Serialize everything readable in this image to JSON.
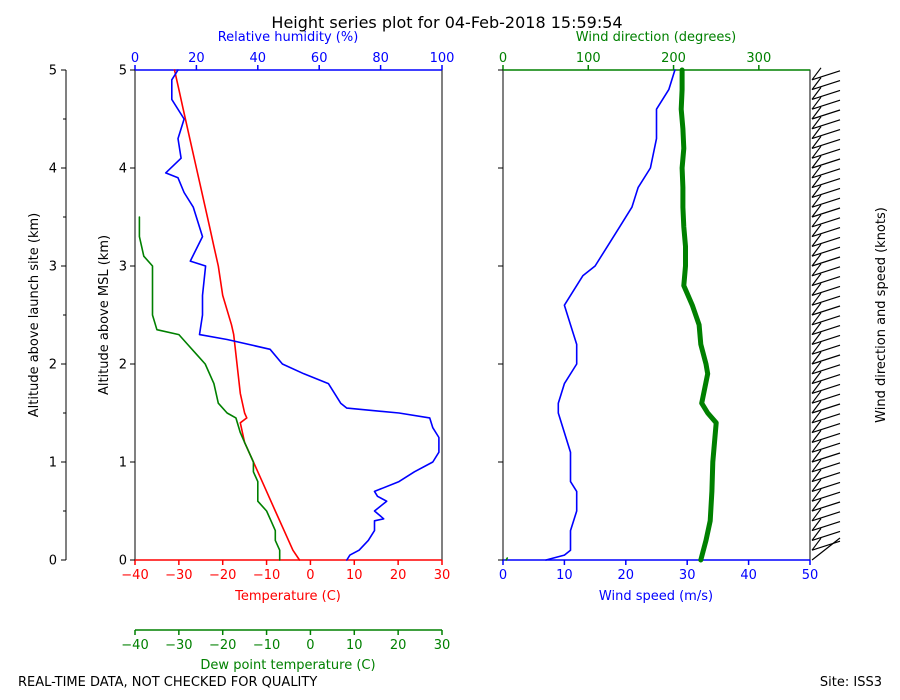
{
  "title": "Height series plot for 04-Feb-2018 15:59:54",
  "footer": {
    "left": "REAL-TIME DATA, NOT CHECKED FOR QUALITY",
    "right": "Site: ISS3"
  },
  "colors": {
    "temperature": "#ff0000",
    "dewpoint": "#008000",
    "humidity": "#0000ff",
    "wind_speed": "#0000ff",
    "wind_direction": "#008000",
    "barbs": "#000000"
  },
  "chart_data": [
    {
      "type": "line",
      "panel": "thermo",
      "axes": {
        "outer_left": {
          "label": "Altitude above launch site (km)",
          "range": [
            0,
            5
          ],
          "ticks": [
            0,
            1,
            2,
            3,
            4,
            5
          ]
        },
        "left": {
          "label": "Altitude above MSL (km)",
          "range": [
            0,
            5
          ],
          "ticks": [
            0,
            1,
            2,
            3,
            4,
            5
          ]
        },
        "bottom": {
          "label": "Temperature (C)",
          "range": [
            -40,
            30
          ],
          "ticks": [
            -40,
            -30,
            -20,
            -10,
            0,
            10,
            20,
            30
          ]
        },
        "bottom2": {
          "label": "Dew point temperature (C)",
          "range": [
            -40,
            30
          ],
          "ticks": [
            -40,
            -30,
            -20,
            -10,
            0,
            10,
            20,
            30
          ]
        },
        "top": {
          "label": "Relative humidity (%)",
          "range": [
            0,
            100
          ],
          "ticks": [
            0,
            20,
            40,
            60,
            80,
            100
          ]
        }
      },
      "series": [
        {
          "name": "Temperature",
          "axis": "temperature",
          "color": "#ff0000",
          "points": [
            [
              -2.5,
              0
            ],
            [
              -4,
              0.1
            ],
            [
              -6,
              0.3
            ],
            [
              -8,
              0.5
            ],
            [
              -11,
              0.8
            ],
            [
              -13,
              1.0
            ],
            [
              -15,
              1.2
            ],
            [
              -16,
              1.4
            ],
            [
              -14.5,
              1.45
            ],
            [
              -15,
              1.5
            ],
            [
              -16,
              1.7
            ],
            [
              -16.5,
              1.9
            ],
            [
              -17,
              2.1
            ],
            [
              -17.5,
              2.3
            ],
            [
              -18,
              2.4
            ],
            [
              -20,
              2.7
            ],
            [
              -21,
              3.0
            ],
            [
              -22,
              3.2
            ],
            [
              -23,
              3.4
            ],
            [
              -24,
              3.6
            ],
            [
              -25,
              3.8
            ],
            [
              -26,
              4.0
            ],
            [
              -27,
              4.2
            ],
            [
              -28,
              4.4
            ],
            [
              -29,
              4.6
            ],
            [
              -30,
              4.8
            ],
            [
              -31,
              5.0
            ]
          ]
        },
        {
          "name": "Dew point",
          "axis": "dewpoint",
          "color": "#008000",
          "points": [
            [
              -7,
              0
            ],
            [
              -7,
              0.1
            ],
            [
              -8,
              0.2
            ],
            [
              -8,
              0.3
            ],
            [
              -9,
              0.4
            ],
            [
              -10,
              0.5
            ],
            [
              -12,
              0.6
            ],
            [
              -12,
              0.8
            ],
            [
              -13,
              0.9
            ],
            [
              -13,
              1.0
            ],
            [
              -14,
              1.1
            ],
            [
              -15,
              1.2
            ],
            [
              -16,
              1.3
            ],
            [
              -17,
              1.45
            ],
            [
              -19,
              1.5
            ],
            [
              -21,
              1.6
            ],
            [
              -22,
              1.8
            ],
            [
              -24,
              2.0
            ],
            [
              -26,
              2.1
            ],
            [
              -28,
              2.2
            ],
            [
              -30,
              2.3
            ],
            [
              -35,
              2.35
            ],
            [
              -36,
              2.5
            ],
            [
              -36,
              2.8
            ],
            [
              -36,
              3.0
            ],
            [
              -38,
              3.1
            ],
            [
              -39,
              3.3
            ],
            [
              -39,
              3.5
            ]
          ]
        },
        {
          "name": "Relative humidity",
          "axis": "humidity",
          "color": "#0000ff",
          "points": [
            [
              69,
              0
            ],
            [
              70,
              0.05
            ],
            [
              73,
              0.1
            ],
            [
              76,
              0.2
            ],
            [
              78,
              0.3
            ],
            [
              78,
              0.4
            ],
            [
              81,
              0.42
            ],
            [
              78,
              0.5
            ],
            [
              82,
              0.6
            ],
            [
              79,
              0.65
            ],
            [
              78,
              0.7
            ],
            [
              86,
              0.8
            ],
            [
              91,
              0.9
            ],
            [
              97,
              1.0
            ],
            [
              99,
              1.1
            ],
            [
              99,
              1.25
            ],
            [
              97,
              1.35
            ],
            [
              96,
              1.45
            ],
            [
              86,
              1.5
            ],
            [
              69,
              1.55
            ],
            [
              67,
              1.6
            ],
            [
              63,
              1.8
            ],
            [
              55,
              1.9
            ],
            [
              48,
              2.0
            ],
            [
              44,
              2.15
            ],
            [
              30,
              2.25
            ],
            [
              21,
              2.3
            ],
            [
              22,
              2.5
            ],
            [
              22,
              2.7
            ],
            [
              23,
              3.0
            ],
            [
              18,
              3.05
            ],
            [
              22,
              3.3
            ],
            [
              19,
              3.6
            ],
            [
              16,
              3.75
            ],
            [
              14,
              3.9
            ],
            [
              10,
              3.95
            ],
            [
              15,
              4.1
            ],
            [
              14,
              4.3
            ],
            [
              16,
              4.5
            ],
            [
              12,
              4.7
            ],
            [
              12,
              4.9
            ],
            [
              14,
              5.0
            ]
          ]
        }
      ]
    },
    {
      "type": "line",
      "panel": "wind",
      "axes": {
        "bottom": {
          "label": "Wind speed (m/s)",
          "range": [
            0,
            50
          ],
          "ticks": [
            0,
            10,
            20,
            30,
            40,
            50
          ]
        },
        "top": {
          "label": "Wind direction (degrees)",
          "range": [
            0,
            360
          ],
          "ticks": [
            0,
            100,
            200,
            300
          ]
        },
        "right": {
          "label": "Wind direction and speed (knots)"
        }
      },
      "series": [
        {
          "name": "Wind speed",
          "axis": "speed",
          "color": "#0000ff",
          "points": [
            [
              7,
              0
            ],
            [
              10,
              0.05
            ],
            [
              11,
              0.1
            ],
            [
              11,
              0.3
            ],
            [
              12,
              0.5
            ],
            [
              12,
              0.7
            ],
            [
              11,
              0.8
            ],
            [
              11,
              1.0
            ],
            [
              11,
              1.1
            ],
            [
              10,
              1.3
            ],
            [
              9,
              1.5
            ],
            [
              9,
              1.6
            ],
            [
              10,
              1.8
            ],
            [
              12,
              2.0
            ],
            [
              12,
              2.2
            ],
            [
              11,
              2.4
            ],
            [
              10,
              2.6
            ],
            [
              11,
              2.7
            ],
            [
              13,
              2.9
            ],
            [
              15,
              3.0
            ],
            [
              17,
              3.2
            ],
            [
              19,
              3.4
            ],
            [
              21,
              3.6
            ],
            [
              22,
              3.8
            ],
            [
              24,
              4.0
            ],
            [
              25,
              4.3
            ],
            [
              25,
              4.6
            ],
            [
              27,
              4.8
            ],
            [
              28,
              5.0
            ]
          ]
        },
        {
          "name": "Wind direction",
          "axis": "direction",
          "color": "#008000",
          "width": 5,
          "points": [
            [
              232,
              0
            ],
            [
              238,
              0.2
            ],
            [
              243,
              0.4
            ],
            [
              245,
              0.7
            ],
            [
              246,
              1.0
            ],
            [
              248,
              1.2
            ],
            [
              250,
              1.4
            ],
            [
              240,
              1.5
            ],
            [
              233,
              1.6
            ],
            [
              240,
              1.9
            ],
            [
              238,
              2.0
            ],
            [
              232,
              2.2
            ],
            [
              230,
              2.4
            ],
            [
              222,
              2.6
            ],
            [
              212,
              2.8
            ],
            [
              214,
              3.0
            ],
            [
              214,
              3.2
            ],
            [
              212,
              3.4
            ],
            [
              211,
              3.6
            ],
            [
              211,
              3.8
            ],
            [
              210,
              4.0
            ],
            [
              212,
              4.2
            ],
            [
              211,
              4.4
            ],
            [
              209,
              4.6
            ],
            [
              210,
              4.8
            ],
            [
              210,
              5.0
            ]
          ]
        },
        {
          "name": "Near-surface point",
          "axis": "speed",
          "color": "#008000",
          "points": [
            [
              0.5,
              0
            ],
            [
              0.7,
              0.02
            ]
          ]
        }
      ],
      "barbs": {
        "altitudes_km": [
          0.1,
          0.2,
          0.3,
          0.4,
          0.5,
          0.6,
          0.7,
          0.8,
          0.9,
          1.0,
          1.1,
          1.2,
          1.3,
          1.4,
          1.5,
          1.6,
          1.7,
          1.8,
          1.9,
          2.0,
          2.1,
          2.2,
          2.3,
          2.4,
          2.5,
          2.6,
          2.7,
          2.8,
          2.9,
          3.0,
          3.1,
          3.2,
          3.3,
          3.4,
          3.5,
          3.6,
          3.7,
          3.8,
          3.9,
          4.0,
          4.1,
          4.2,
          4.3,
          4.4,
          4.5,
          4.6,
          4.7,
          4.8,
          4.9
        ]
      }
    }
  ]
}
